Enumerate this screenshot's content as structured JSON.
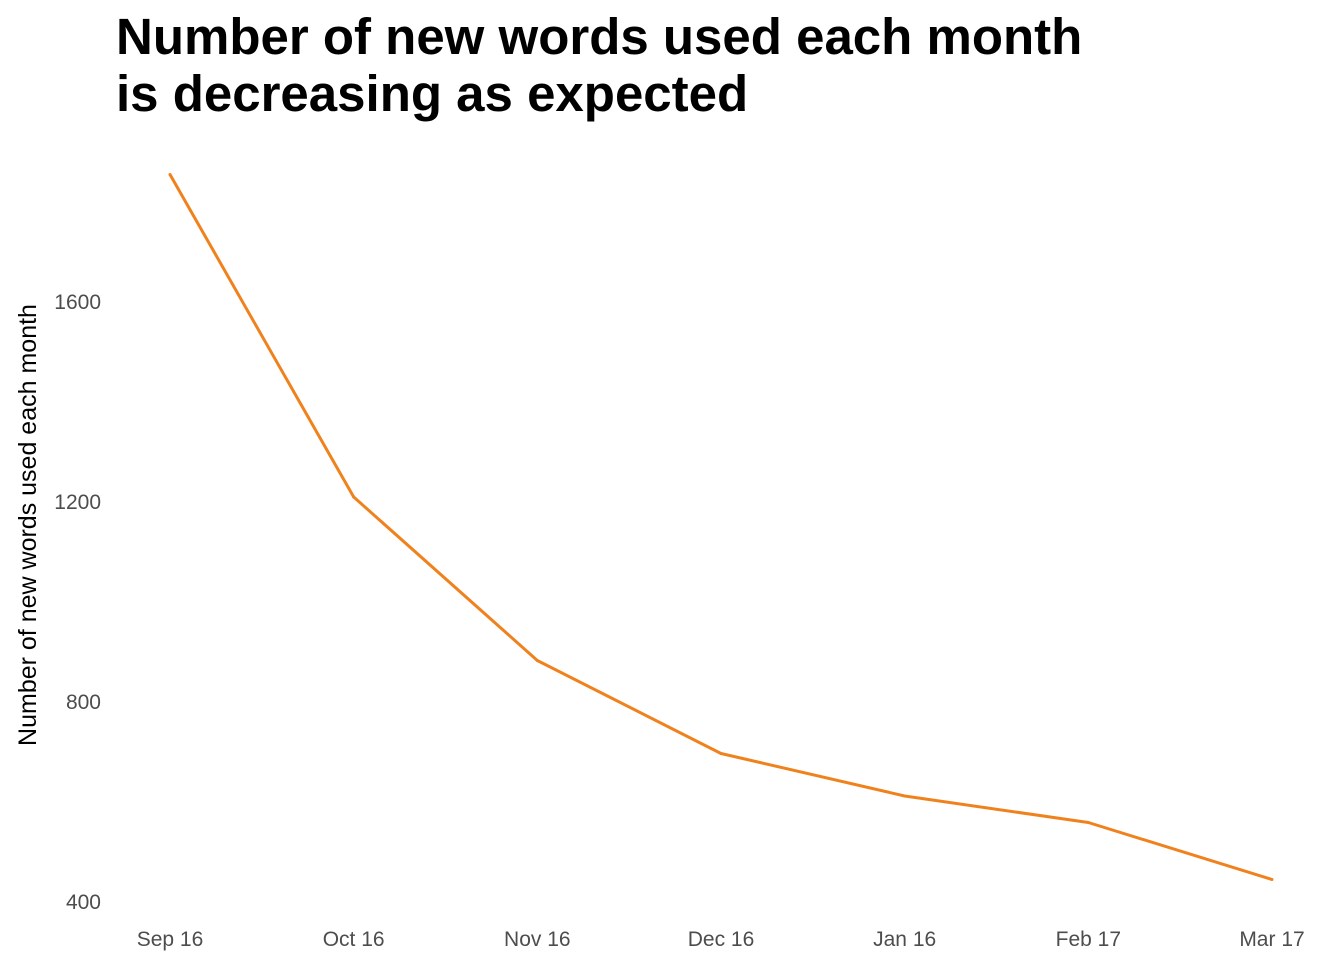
{
  "chart_data": {
    "type": "line",
    "title": "Number of new words used each month\nis decreasing as expected",
    "xlabel": "",
    "ylabel": "Number of new words used each month",
    "categories": [
      "Sep 16",
      "Oct 16",
      "Nov 16",
      "Dec 16",
      "Jan 16",
      "Feb 17",
      "Mar 17"
    ],
    "series": [
      {
        "values": [
          1855,
          1210,
          883,
          697,
          612,
          559,
          445
        ],
        "color": "#f0821e"
      }
    ],
    "yticks": [
      400,
      800,
      1200,
      1600
    ],
    "ylim": [
      400,
      1860
    ],
    "grid": false,
    "legend": "none"
  }
}
